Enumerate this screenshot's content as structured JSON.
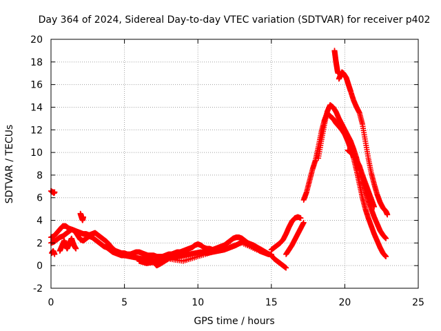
{
  "chart_data": {
    "type": "scatter",
    "title": "Day 364 of 2024, Sidereal Day-to-day VTEC variation (SDTVAR) for receiver p402",
    "xlabel": "GPS time / hours",
    "ylabel": "SDTVAR / TECUs",
    "xlim": [
      0,
      25
    ],
    "ylim": [
      -2,
      20
    ],
    "xticks": [
      0,
      5,
      10,
      15,
      20,
      25
    ],
    "yticks": [
      -2,
      0,
      2,
      4,
      6,
      8,
      10,
      12,
      14,
      16,
      18,
      20
    ],
    "grid": true,
    "marker": "plus",
    "colors": {
      "series": "#ff0000",
      "grid": "#a0a0a0",
      "axis": "#000000",
      "background": "#ffffff"
    },
    "series": [
      {
        "name": "SDTVAR",
        "segments": [
          {
            "x": [
              0.0,
              0.1,
              0.15,
              0.2,
              0.25
            ],
            "y": [
              6.6,
              6.5,
              6.5,
              6.4,
              6.5
            ]
          },
          {
            "x": [
              0.05,
              0.15,
              0.25
            ],
            "y": [
              1.1,
              1.3,
              1.0
            ]
          },
          {
            "x": [
              0.0,
              0.2,
              0.4,
              0.6,
              0.8,
              1.0,
              1.2,
              1.4,
              1.6,
              1.8,
              2.0,
              2.2,
              2.4,
              2.6,
              2.8,
              3.0,
              3.2,
              3.4,
              3.6,
              3.8,
              4.0,
              4.2,
              4.4,
              4.6,
              4.8,
              5.0,
              5.2,
              5.4,
              5.6,
              5.8,
              6.0,
              6.2,
              6.4,
              6.6,
              6.8,
              7.0,
              7.2,
              7.4,
              7.6,
              7.8,
              8.0,
              8.2,
              8.4,
              8.6,
              8.8,
              9.0,
              9.2,
              9.4,
              9.6,
              9.8,
              10.0,
              10.2,
              10.4,
              10.6,
              10.8,
              11.0,
              11.2,
              11.4,
              11.6,
              11.8,
              12.0,
              12.2,
              12.4,
              12.6,
              12.8,
              13.0,
              13.2,
              13.4,
              13.6,
              13.8,
              14.0,
              14.2,
              14.4,
              14.6,
              14.8,
              15.0
            ],
            "y": [
              2.5,
              2.6,
              2.9,
              3.2,
              3.5,
              3.5,
              3.3,
              3.2,
              3.1,
              3.0,
              2.9,
              2.8,
              2.8,
              2.7,
              2.8,
              2.9,
              2.7,
              2.5,
              2.3,
              2.1,
              1.8,
              1.5,
              1.3,
              1.2,
              1.1,
              1.1,
              1.0,
              1.0,
              1.1,
              1.2,
              1.2,
              1.1,
              1.0,
              0.9,
              0.9,
              0.9,
              0.8,
              0.8,
              0.8,
              0.9,
              1.0,
              1.0,
              1.1,
              1.2,
              1.2,
              1.3,
              1.4,
              1.5,
              1.6,
              1.8,
              1.9,
              1.8,
              1.6,
              1.5,
              1.5,
              1.4,
              1.5,
              1.6,
              1.7,
              1.8,
              2.0,
              2.2,
              2.4,
              2.5,
              2.5,
              2.4,
              2.2,
              2.0,
              1.8,
              1.6,
              1.5,
              1.3,
              1.2,
              1.1,
              1.0,
              1.0
            ]
          },
          {
            "x": [
              0.0,
              0.2,
              0.4,
              0.6,
              0.8,
              1.0,
              1.2,
              1.4,
              1.6,
              1.8,
              2.0,
              2.2,
              2.4,
              2.6,
              2.8,
              3.0,
              3.2,
              3.4,
              3.6,
              3.8,
              4.0,
              4.2,
              4.4,
              4.6,
              4.8,
              5.0,
              5.4,
              5.8,
              6.2,
              6.6,
              7.0,
              7.4,
              7.8,
              8.2,
              8.6,
              9.0,
              9.4,
              9.8,
              10.2,
              10.6,
              11.0,
              11.4,
              11.8,
              12.2,
              12.6,
              13.0,
              13.4,
              13.8,
              14.2,
              14.6,
              15.0
            ],
            "y": [
              2.0,
              2.1,
              2.3,
              2.5,
              2.6,
              2.8,
              3.0,
              3.2,
              3.1,
              2.7,
              2.3,
              2.2,
              2.4,
              2.6,
              2.5,
              2.3,
              2.1,
              1.9,
              1.7,
              1.6,
              1.4,
              1.2,
              1.1,
              1.0,
              0.9,
              0.9,
              0.8,
              0.7,
              0.6,
              0.5,
              0.4,
              0.5,
              0.6,
              0.7,
              0.8,
              0.9,
              1.0,
              1.1,
              1.2,
              1.1,
              1.2,
              1.3,
              1.4,
              1.6,
              1.8,
              2.1,
              2.0,
              1.8,
              1.5,
              1.2,
              0.9
            ]
          },
          {
            "x": [
              0.6,
              0.7,
              0.8,
              0.9,
              1.0,
              1.1,
              1.2,
              1.3,
              1.4,
              1.5,
              1.6,
              1.7
            ],
            "y": [
              1.3,
              1.6,
              1.9,
              2.2,
              1.8,
              1.5,
              1.8,
              2.1,
              2.4,
              2.0,
              1.7,
              1.5
            ]
          },
          {
            "x": [
              2.0,
              2.05,
              2.1,
              2.15,
              2.2
            ],
            "y": [
              4.6,
              4.4,
              4.2,
              4.0,
              4.3
            ]
          },
          {
            "x": [
              6.0,
              6.5,
              7.0,
              7.2,
              7.5,
              8.0,
              9.0,
              10.0,
              11.0,
              12.0,
              13.0,
              14.0
            ],
            "y": [
              0.4,
              0.2,
              0.3,
              0.0,
              0.2,
              0.6,
              0.4,
              0.8,
              1.2,
              1.6,
              2.0,
              1.4
            ]
          },
          {
            "x": [
              15.0,
              15.2,
              15.4,
              15.6,
              15.8,
              16.0,
              16.2,
              16.4,
              16.6,
              16.8,
              17.0
            ],
            "y": [
              1.4,
              1.6,
              1.8,
              2.0,
              2.3,
              2.8,
              3.4,
              3.9,
              4.2,
              4.3,
              4.2
            ]
          },
          {
            "x": [
              15.0,
              15.2,
              15.4,
              15.6,
              15.8,
              16.0
            ],
            "y": [
              0.9,
              0.6,
              0.4,
              0.2,
              0.0,
              -0.2
            ]
          },
          {
            "x": [
              16.0,
              16.2,
              16.4,
              16.6,
              16.8,
              17.0,
              17.2
            ],
            "y": [
              1.0,
              1.4,
              1.8,
              2.3,
              2.8,
              3.3,
              3.8
            ]
          },
          {
            "x": [
              17.2,
              17.4,
              17.6,
              17.8,
              18.0,
              18.2,
              18.4,
              18.6,
              18.8,
              19.0,
              19.2,
              19.4,
              19.6,
              19.8,
              20.0,
              20.2,
              20.4,
              20.6,
              20.8,
              21.0,
              21.2,
              21.4,
              21.6,
              21.8,
              22.0,
              22.2,
              22.4,
              22.6,
              22.8
            ],
            "y": [
              5.8,
              6.5,
              7.5,
              8.5,
              9.3,
              10.5,
              11.8,
              12.8,
              13.5,
              13.2,
              13.0,
              12.6,
              12.3,
              12.0,
              11.6,
              11.0,
              10.3,
              9.5,
              8.4,
              7.2,
              6.0,
              5.0,
              4.2,
              3.5,
              2.8,
              2.2,
              1.6,
              1.1,
              0.8
            ]
          },
          {
            "x": [
              18.2,
              18.4,
              18.6,
              18.8,
              19.0,
              19.2,
              19.4,
              19.6,
              19.8,
              20.0,
              20.2,
              20.4,
              20.6,
              20.8,
              21.0,
              21.2,
              21.4,
              21.6,
              21.8,
              22.0,
              22.2,
              22.4,
              22.6,
              22.8
            ],
            "y": [
              9.5,
              11.0,
              12.4,
              13.6,
              14.2,
              14.0,
              13.6,
              13.0,
              12.5,
              12.0,
              11.5,
              11.0,
              10.3,
              9.5,
              8.5,
              7.5,
              6.6,
              5.8,
              5.0,
              4.3,
              3.7,
              3.1,
              2.7,
              2.4
            ]
          },
          {
            "x": [
              19.3,
              19.35,
              19.4,
              19.45,
              19.5,
              19.55
            ],
            "y": [
              19.0,
              18.5,
              18.0,
              17.6,
              17.2,
              17.0
            ]
          },
          {
            "x": [
              19.6,
              19.7,
              19.8,
              19.9,
              20.0,
              20.1,
              20.2,
              20.3,
              20.4,
              20.6,
              20.8,
              21.0,
              21.2,
              21.4,
              21.6,
              21.8,
              22.0,
              22.2,
              22.4,
              22.6,
              22.8,
              22.9
            ],
            "y": [
              16.5,
              16.8,
              17.1,
              17.0,
              16.8,
              16.6,
              16.2,
              15.8,
              15.4,
              14.6,
              14.0,
              13.5,
              12.5,
              11.0,
              9.5,
              8.2,
              7.2,
              6.3,
              5.6,
              5.1,
              4.8,
              4.5
            ]
          },
          {
            "x": [
              20.2,
              20.4,
              20.6,
              20.8,
              21.0,
              21.2,
              21.4,
              21.6,
              21.8,
              22.0
            ],
            "y": [
              10.2,
              10.0,
              9.7,
              9.3,
              8.8,
              8.0,
              7.3,
              6.6,
              5.9,
              5.2
            ]
          }
        ]
      }
    ]
  }
}
